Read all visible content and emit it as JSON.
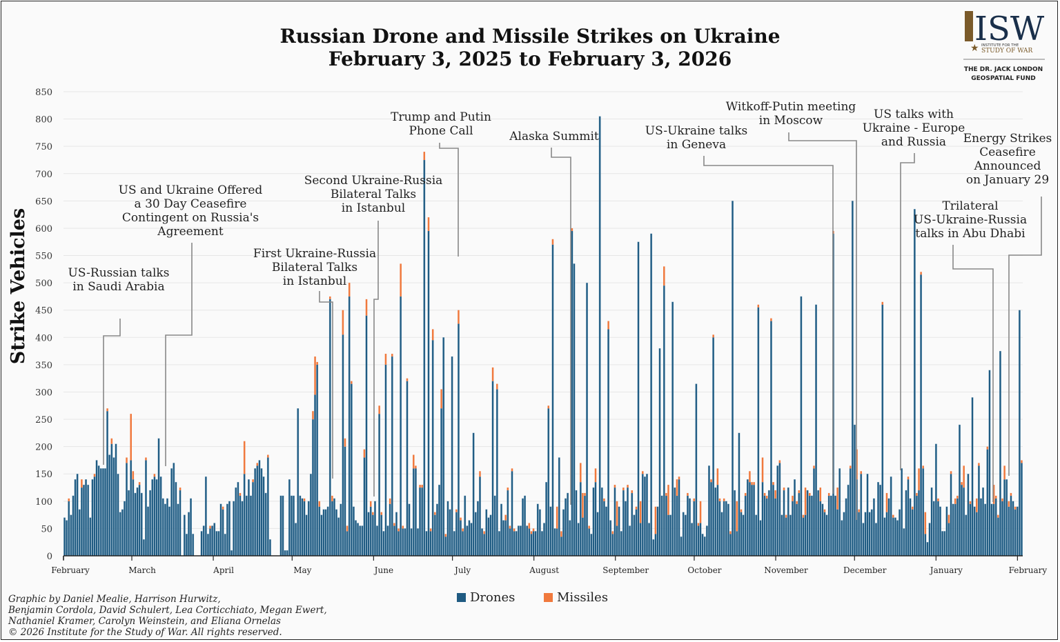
{
  "title_line1": "Russian Drone and Missile Strikes on Ukraine",
  "title_line2": "February 3, 2025 to February 3, 2026",
  "logo": {
    "isw": "ISW",
    "small1": "INSTITUTE FOR THE",
    "small2": "STUDY OF WAR",
    "fund1": "THE DR. JACK LONDON",
    "fund2": "GEOSPATIAL FUND"
  },
  "legend": {
    "drones": "Drones",
    "missiles": "Missiles"
  },
  "credits": [
    "Graphic by Daniel Mealie, Harrison Hurwitz,",
    "Benjamin Cordola, David Schulert, Lea Corticchiato, Megan Ewert,",
    "Nathaniel Kramer, Carolyn Weinstein, and Eliana Ornelas",
    "© 2026 Institute for the Study of War. All rights reserved."
  ],
  "colors": {
    "drones": "#1f5b82",
    "missiles": "#f0793d",
    "bar_edge": "#8fb3cc"
  },
  "annotations": [
    {
      "lines": [
        "US-Russian talks",
        "in Saudi Arabia"
      ]
    },
    {
      "lines": [
        "US and Ukraine Offered",
        "a 30 Day Ceasefire",
        "Contingent on Russia's",
        "Agreement"
      ]
    },
    {
      "lines": [
        "First Ukraine-Russia",
        "Bilateral Talks",
        "in Istanbul"
      ]
    },
    {
      "lines": [
        "Second Ukraine-Russia",
        "Bilateral Talks",
        "in Istanbul"
      ]
    },
    {
      "lines": [
        "Trump and Putin",
        "Phone Call"
      ]
    },
    {
      "lines": [
        "Alaska Summit"
      ]
    },
    {
      "lines": [
        "US-Ukraine talks",
        "in Geneva"
      ]
    },
    {
      "lines": [
        "Witkoff-Putin meeting",
        "in Moscow"
      ]
    },
    {
      "lines": [
        "US talks with",
        "Ukraine - Europe",
        "and Russia"
      ]
    },
    {
      "lines": [
        "Energy Strikes",
        "Ceasefire",
        "Announced",
        "on January 29"
      ]
    },
    {
      "lines": [
        "Trilateral",
        "US-Ukraine-Russia",
        "talks in Abu Dhabi"
      ]
    }
  ],
  "chart_data": {
    "type": "bar",
    "stacked": true,
    "title": "Russian Drone and Missile Strikes on Ukraine February 3, 2025 to February 3, 2026",
    "ylabel": "Strike Vehicles",
    "xlabel": "",
    "ylim": [
      0,
      850
    ],
    "yticks": [
      0,
      50,
      100,
      150,
      200,
      250,
      300,
      350,
      400,
      450,
      500,
      550,
      600,
      650,
      700,
      750,
      800,
      850
    ],
    "x_tick_labels": [
      "February",
      "March",
      "April",
      "May",
      "June",
      "July",
      "August",
      "September",
      "October",
      "November",
      "December",
      "January",
      "February"
    ],
    "x_range": [
      "2025-02-03",
      "2026-02-03"
    ],
    "grid": "horizontal",
    "legend_position": "bottom",
    "series": [
      {
        "name": "Drones",
        "color": "#1f5b82",
        "values": [
          70,
          65,
          100,
          75,
          110,
          140,
          150,
          85,
          125,
          130,
          140,
          130,
          70,
          140,
          145,
          175,
          165,
          160,
          160,
          160,
          265,
          185,
          205,
          180,
          205,
          150,
          80,
          85,
          100,
          170,
          120,
          175,
          140,
          115,
          125,
          130,
          115,
          30,
          175,
          90,
          120,
          140,
          145,
          140,
          215,
          145,
          105,
          95,
          105,
          90,
          160,
          170,
          135,
          95,
          120,
          0,
          75,
          40,
          80,
          105,
          40,
          0,
          0,
          0,
          45,
          55,
          145,
          40,
          50,
          55,
          60,
          45,
          45,
          95,
          85,
          40,
          95,
          100,
          10,
          100,
          125,
          135,
          110,
          100,
          150,
          110,
          140,
          110,
          135,
          160,
          165,
          175,
          160,
          145,
          115,
          180,
          30,
          0,
          0,
          0,
          0,
          110,
          110,
          10,
          10,
          140,
          110,
          110,
          60,
          270,
          110,
          105,
          100,
          75,
          100,
          150,
          250,
          295,
          350,
          90,
          75,
          85,
          85,
          90,
          470,
          100,
          105,
          85,
          70,
          95,
          405,
          200,
          45,
          475,
          315,
          90,
          65,
          60,
          55,
          55,
          180,
          440,
          80,
          90,
          75,
          100,
          55,
          260,
          75,
          45,
          350,
          55,
          95,
          365,
          55,
          80,
          45,
          475,
          50,
          50,
          320,
          95,
          50,
          160,
          160,
          50,
          125,
          125,
          725,
          45,
          595,
          45,
          395,
          75,
          95,
          130,
          270,
          400,
          35,
          100,
          85,
          365,
          45,
          80,
          425,
          65,
          45,
          110,
          55,
          65,
          60,
          225,
          80,
          100,
          145,
          50,
          40,
          85,
          70,
          75,
          320,
          110,
          305,
          45,
          95,
          65,
          65,
          120,
          50,
          155,
          45,
          45,
          55,
          55,
          105,
          110,
          55,
          50,
          40,
          45,
          45,
          95,
          85,
          45,
          60,
          135,
          270,
          90,
          570,
          50,
          50,
          180,
          35,
          85,
          105,
          115,
          65,
          595,
          535,
          120,
          60,
          135,
          70,
          110,
          500,
          50,
          40,
          125,
          135,
          80,
          805,
          125,
          100,
          90,
          415,
          65,
          40,
          125,
          55,
          90,
          45,
          120,
          100,
          125,
          55,
          115,
          75,
          85,
          575,
          60,
          150,
          145,
          150,
          60,
          590,
          30,
          40,
          90,
          380,
          110,
          495,
          110,
          75,
          75,
          465,
          125,
          110,
          140,
          35,
          80,
          75,
          110,
          105,
          60,
          100,
          315,
          55,
          60,
          40,
          35,
          55,
          165,
          135,
          400,
          125,
          130,
          100,
          80,
          100,
          100,
          95,
          40,
          650,
          120,
          45,
          225,
          80,
          75,
          110,
          140,
          135,
          130,
          130,
          75,
          455,
          65,
          135,
          110,
          105,
          120,
          430,
          130,
          105,
          165,
          170,
          75,
          120,
          70,
          125,
          75,
          100,
          140,
          95,
          115,
          475,
          70,
          75,
          120,
          110,
          110,
          160,
          460,
          120,
          100,
          95,
          80,
          75,
          110,
          110,
          590,
          110,
          85,
          160,
          65,
          80,
          105,
          130,
          160,
          650,
          240,
          140,
          80,
          150,
          60,
          80,
          150,
          80,
          85,
          105,
          60,
          135,
          130,
          460,
          70,
          80,
          105,
          145,
          70,
          70,
          65,
          85,
          160,
          50,
          120,
          140,
          105,
          85,
          635,
          110,
          120,
          515,
          160,
          40,
          25,
          60,
          125,
          100,
          205,
          100,
          90,
          45,
          45,
          90,
          60,
          150,
          95,
          95,
          105,
          240,
          130,
          125,
          75,
          150,
          95,
          290,
          90,
          80,
          165,
          105,
          125,
          95,
          195,
          340,
          95,
          95,
          105,
          70,
          375,
          100,
          140,
          140,
          90,
          110,
          100,
          85,
          90,
          450,
          170
        ]
      },
      {
        "name": "Missiles",
        "color": "#f0793d",
        "values": [
          0,
          0,
          5,
          0,
          0,
          0,
          0,
          0,
          15,
          0,
          0,
          0,
          0,
          0,
          5,
          0,
          0,
          0,
          0,
          0,
          5,
          0,
          10,
          0,
          0,
          0,
          0,
          0,
          0,
          10,
          0,
          85,
          15,
          0,
          0,
          5,
          0,
          0,
          5,
          0,
          0,
          0,
          5,
          0,
          0,
          0,
          0,
          0,
          0,
          0,
          0,
          0,
          0,
          0,
          5,
          0,
          0,
          0,
          0,
          0,
          0,
          0,
          0,
          0,
          0,
          0,
          0,
          0,
          5,
          0,
          0,
          0,
          0,
          0,
          5,
          0,
          0,
          0,
          0,
          0,
          0,
          0,
          5,
          0,
          60,
          0,
          0,
          0,
          5,
          0,
          5,
          0,
          0,
          0,
          0,
          5,
          0,
          0,
          0,
          0,
          0,
          0,
          0,
          0,
          0,
          0,
          0,
          0,
          0,
          0,
          0,
          0,
          5,
          0,
          0,
          0,
          15,
          70,
          5,
          10,
          0,
          0,
          0,
          0,
          5,
          10,
          0,
          0,
          0,
          0,
          45,
          15,
          10,
          25,
          5,
          0,
          0,
          0,
          0,
          0,
          15,
          30,
          0,
          10,
          5,
          0,
          0,
          15,
          5,
          0,
          20,
          0,
          10,
          5,
          5,
          0,
          5,
          60,
          5,
          0,
          5,
          0,
          0,
          25,
          5,
          0,
          5,
          5,
          15,
          0,
          25,
          5,
          20,
          5,
          0,
          0,
          35,
          0,
          5,
          0,
          0,
          0,
          0,
          5,
          25,
          5,
          5,
          0,
          0,
          0,
          0,
          0,
          0,
          0,
          10,
          0,
          5,
          0,
          0,
          0,
          25,
          0,
          10,
          0,
          0,
          0,
          10,
          5,
          5,
          5,
          5,
          0,
          0,
          0,
          0,
          0,
          0,
          10,
          5,
          5,
          0,
          0,
          0,
          0,
          0,
          0,
          5,
          0,
          10,
          0,
          40,
          0,
          10,
          0,
          0,
          0,
          0,
          5,
          0,
          0,
          0,
          35,
          45,
          5,
          0,
          5,
          0,
          0,
          25,
          0,
          0,
          0,
          5,
          0,
          15,
          0,
          5,
          5,
          45,
          0,
          0,
          5,
          0,
          5,
          0,
          5,
          0,
          5,
          0,
          40,
          5,
          0,
          0,
          0,
          0,
          0,
          50,
          0,
          0,
          0,
          35,
          5,
          55,
          0,
          0,
          0,
          30,
          5,
          0,
          0,
          0,
          5,
          0,
          0,
          5,
          0,
          5,
          40,
          0,
          0,
          0,
          0,
          5,
          5,
          0,
          30,
          5,
          0,
          5,
          0,
          0,
          5,
          0,
          0,
          55,
          0,
          5,
          0,
          5,
          0,
          20,
          5,
          5,
          0,
          5,
          0,
          45,
          5,
          5,
          0,
          5,
          5,
          15,
          0,
          5,
          0,
          5,
          5,
          0,
          0,
          10,
          0,
          5,
          5,
          0,
          5,
          50,
          0,
          5,
          0,
          5,
          0,
          0,
          25,
          0,
          5,
          0,
          5,
          0,
          5,
          0,
          40,
          0,
          0,
          0,
          0,
          0,
          5,
          0,
          0,
          55,
          5,
          5,
          0,
          0,
          0,
          0,
          0,
          0,
          0,
          0,
          0,
          5,
          0,
          35,
          0,
          0,
          5,
          0,
          0,
          0,
          0,
          0,
          0,
          5,
          0,
          5,
          0,
          5,
          40,
          5,
          5,
          40,
          0,
          0,
          0,
          0,
          0,
          5,
          0,
          0,
          0,
          0,
          15,
          5,
          0,
          10,
          5,
          0,
          5,
          40,
          0,
          0,
          5,
          0,
          0,
          25,
          5,
          0,
          0,
          0,
          5,
          0,
          0,
          35,
          5,
          5,
          0,
          5,
          25,
          0,
          10,
          5,
          0,
          5,
          0,
          0,
          5,
          70,
          5
        ]
      }
    ]
  }
}
